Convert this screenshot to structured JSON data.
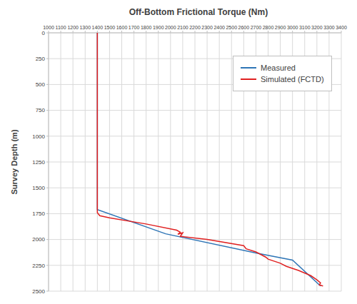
{
  "chart_data": {
    "type": "line",
    "title": "Off-Bottom Frictional Torque (Nm)",
    "y_label": "Survey Depth (m)",
    "xlim": [
      1000,
      3400
    ],
    "xticks": [
      1000,
      1100,
      1200,
      1300,
      1400,
      1500,
      1600,
      1700,
      1800,
      1900,
      2000,
      2100,
      2200,
      2300,
      2400,
      2500,
      2600,
      2700,
      2800,
      2900,
      3000,
      3100,
      3200,
      3300,
      3400
    ],
    "ylim": [
      0,
      2500
    ],
    "yticks": [
      0,
      250,
      500,
      750,
      1000,
      1250,
      1500,
      1750,
      2000,
      2250,
      2500
    ],
    "grid": true,
    "legend": "upper right",
    "series": [
      {
        "name": "Measured",
        "color": "#2e75b6",
        "x": [
          1400,
          1400,
          1960,
          2700,
          3000,
          3230
        ],
        "y": [
          0,
          1710,
          1945,
          2130,
          2200,
          2450
        ]
      },
      {
        "name": "Simulated (FCTD)",
        "color": "#e02020",
        "x": [
          1400,
          1400,
          1420,
          1500,
          1800,
          2050,
          2080,
          2060,
          2100,
          2080,
          2300,
          2600,
          2620,
          2700,
          2780,
          2800,
          2900,
          2950,
          3050,
          3150,
          3200,
          3230,
          3220,
          3250
        ],
        "y": [
          0,
          1740,
          1770,
          1790,
          1850,
          1910,
          1930,
          1950,
          1935,
          1970,
          2000,
          2060,
          2090,
          2120,
          2170,
          2190,
          2230,
          2260,
          2300,
          2350,
          2390,
          2420,
          2440,
          2450
        ]
      }
    ]
  }
}
